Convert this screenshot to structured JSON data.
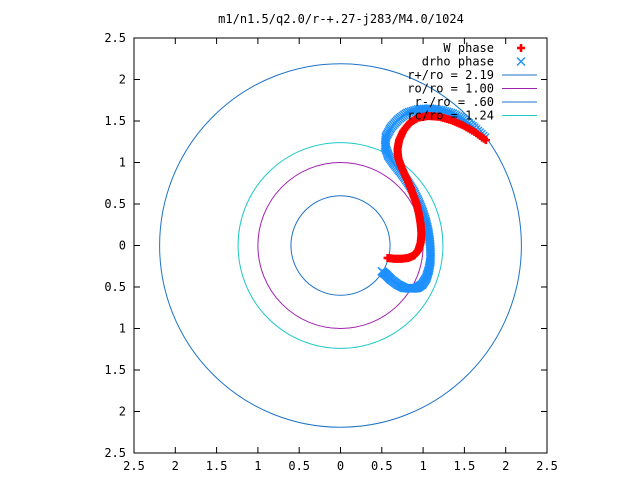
{
  "chart_data": {
    "type": "scatter",
    "title": "m1/n1.5/q2.0/r-+.27-j283/M4.0/1024",
    "xlabel": "",
    "ylabel": "",
    "xlim": [
      -2.5,
      2.5
    ],
    "ylim": [
      -2.5,
      2.5
    ],
    "x_ticks": [
      -2.5,
      -2,
      -1.5,
      -1,
      -0.5,
      0,
      0.5,
      1,
      1.5,
      2,
      2.5
    ],
    "y_ticks": [
      -2.5,
      -2,
      -1.5,
      -1,
      -0.5,
      0,
      0.5,
      1,
      1.5,
      2,
      2.5
    ],
    "x_tick_labels": [
      "2.5",
      "2",
      "1.5",
      "1",
      "0.5",
      "0",
      "0.5",
      "1",
      "1.5",
      "2",
      "2.5"
    ],
    "y_tick_labels": [
      "2.5",
      "2",
      "1.5",
      "1",
      "0.5",
      "0",
      "0.5",
      "1",
      "1.5",
      "2",
      "2.5"
    ],
    "grid": false,
    "legend_position": "top-right",
    "series": [
      {
        "name": "W phase",
        "kind": "points",
        "marker": "+",
        "color": "#ff0000",
        "x": [
          1.76,
          1.62,
          1.48,
          1.34,
          1.2,
          1.06,
          0.94,
          0.84,
          0.76,
          0.71,
          0.69,
          0.7,
          0.74,
          0.79,
          0.84,
          0.88,
          0.92,
          0.95,
          0.97,
          0.98,
          0.97,
          0.94,
          0.89,
          0.82,
          0.74,
          0.65,
          0.57
        ],
        "y": [
          1.27,
          1.37,
          1.45,
          1.51,
          1.55,
          1.56,
          1.54,
          1.48,
          1.38,
          1.27,
          1.16,
          1.05,
          0.94,
          0.83,
          0.72,
          0.61,
          0.5,
          0.38,
          0.26,
          0.14,
          0.03,
          -0.06,
          -0.12,
          -0.15,
          -0.16,
          -0.16,
          -0.15
        ]
      },
      {
        "name": "drho phase",
        "kind": "points",
        "marker": "x",
        "color": "#1e90ff",
        "x": [
          1.75,
          1.62,
          1.49,
          1.36,
          1.22,
          1.08,
          0.94,
          0.81,
          0.7,
          0.61,
          0.55,
          0.54,
          0.58,
          0.65,
          0.73,
          0.81,
          0.88,
          0.94,
          0.99,
          1.03,
          1.06,
          1.08,
          1.09,
          1.09,
          1.07,
          1.04,
          0.99,
          0.93,
          0.86,
          0.77,
          0.69,
          0.61,
          0.55,
          0.5
        ],
        "y": [
          1.3,
          1.42,
          1.52,
          1.59,
          1.63,
          1.65,
          1.64,
          1.6,
          1.52,
          1.42,
          1.31,
          1.19,
          1.08,
          0.98,
          0.88,
          0.77,
          0.66,
          0.54,
          0.42,
          0.3,
          0.18,
          0.06,
          -0.06,
          -0.18,
          -0.29,
          -0.39,
          -0.47,
          -0.51,
          -0.52,
          -0.51,
          -0.47,
          -0.41,
          -0.35,
          -0.31
        ]
      },
      {
        "name": "r+/ro = 2.19",
        "kind": "circle",
        "radius": 2.19,
        "color": "#1e73c8"
      },
      {
        "name": "ro/ro = 1.00",
        "kind": "circle",
        "radius": 1.0,
        "color": "#a020b0"
      },
      {
        "name": "r-/ro = .60",
        "kind": "circle",
        "radius": 0.6,
        "color": "#1e73c8"
      },
      {
        "name": "rc/ro = 1.24",
        "kind": "circle",
        "radius": 1.24,
        "color": "#20c8c8"
      }
    ]
  }
}
